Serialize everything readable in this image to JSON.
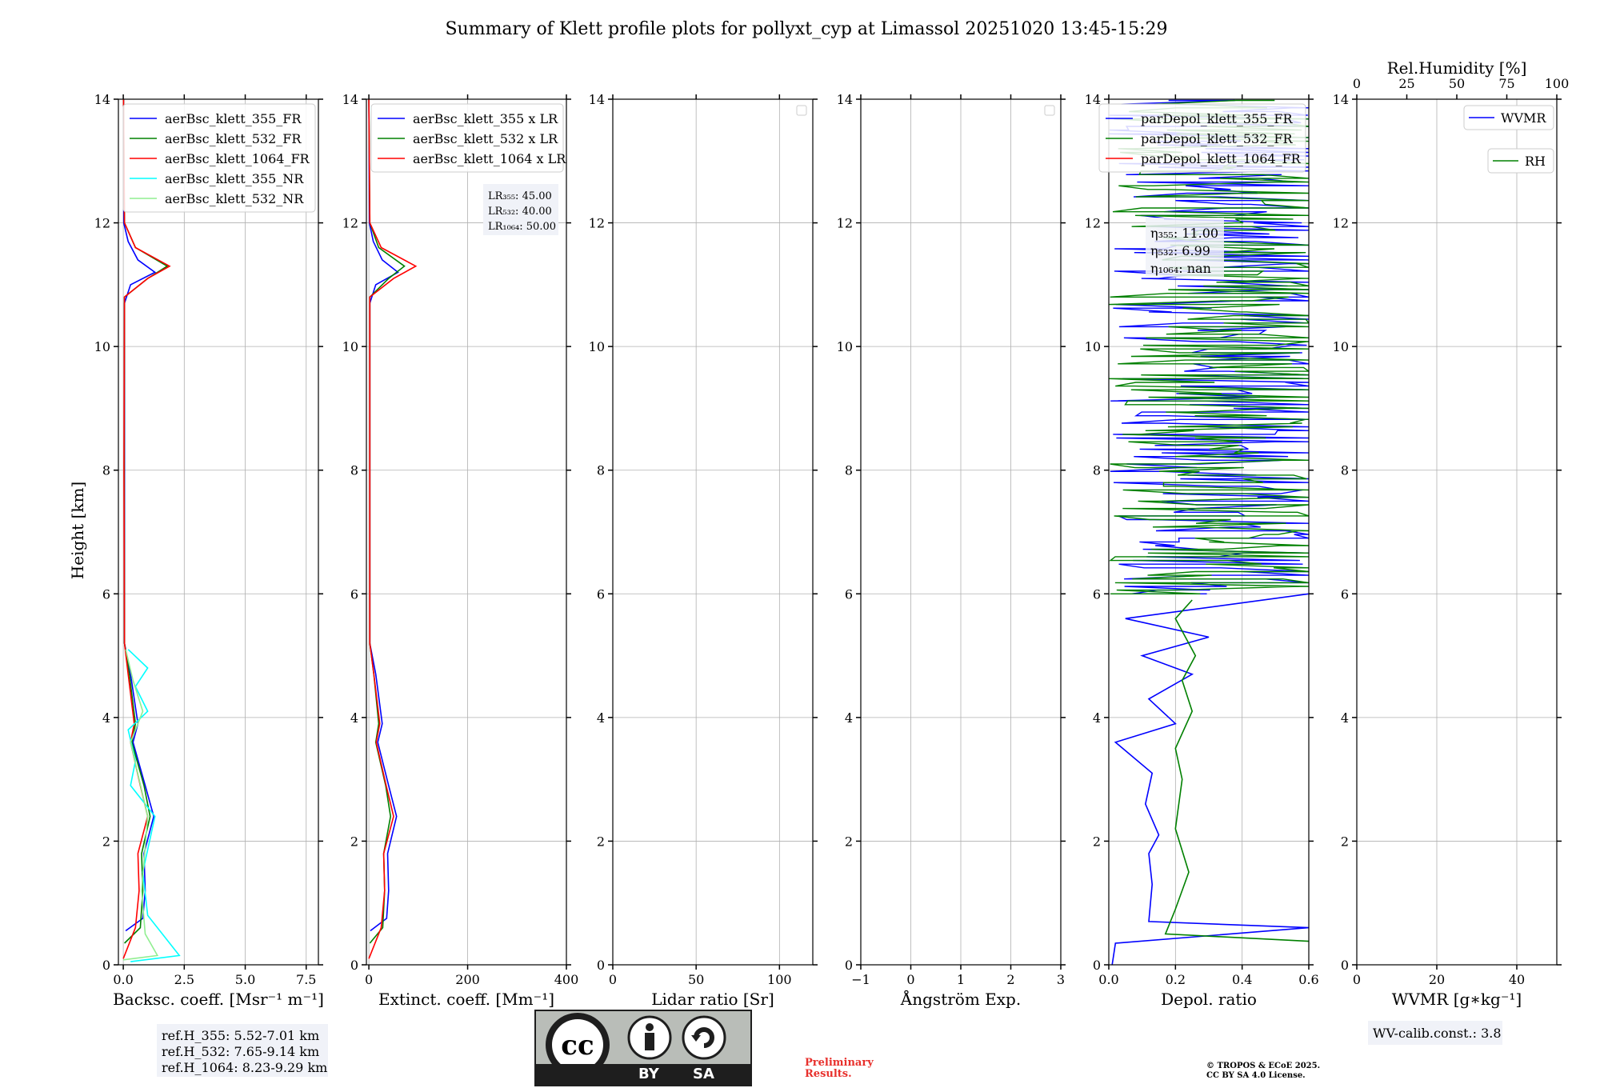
{
  "title": "Summary of Klett profile plots for pollyxt_cyp at Limassol 20251020 13:45-15:29",
  "y_axis_label": "Height [km]",
  "y_ticks": [
    "0",
    "2",
    "4",
    "6",
    "8",
    "10",
    "12",
    "14"
  ],
  "colors": {
    "blue": "#0000ff",
    "green": "#008000",
    "red": "#ff0000",
    "cyan": "#00ffff",
    "lightgreen": "#90ee90",
    "grid": "#b0b0b0"
  },
  "chart_data": [
    {
      "type": "line",
      "xlabel": "Backsc. coeff. [Msr⁻¹ m⁻¹]",
      "xlim": [
        -0.2,
        8.0
      ],
      "ylim": [
        0,
        14
      ],
      "x_ticks": [
        "0.0",
        "2.5",
        "5.0",
        "7.5"
      ],
      "legend": [
        "aerBsc_klett_355_FR",
        "aerBsc_klett_532_FR",
        "aerBsc_klett_1064_FR",
        "aerBsc_klett_355_NR",
        "aerBsc_klett_532_NR"
      ],
      "legend_placement": "top-right",
      "ref_heights": [
        "ref.H_355: 5.52-7.01 km",
        "ref.H_532: 7.65-9.14 km",
        "ref.H_1064: 8.23-9.29 km"
      ],
      "series": [
        {
          "name": "aerBsc_klett_355_FR",
          "color": "blue",
          "points": [
            [
              0.1,
              0.55
            ],
            [
              0.8,
              0.75
            ],
            [
              0.9,
              1.2
            ],
            [
              0.85,
              1.8
            ],
            [
              1.25,
              2.4
            ],
            [
              0.9,
              2.9
            ],
            [
              0.4,
              3.6
            ],
            [
              0.6,
              3.9
            ],
            [
              0.3,
              4.7
            ],
            [
              0.05,
              5.2
            ],
            [
              0.05,
              8.0
            ],
            [
              0.05,
              10.7
            ],
            [
              0.3,
              11.0
            ],
            [
              1.3,
              11.2
            ],
            [
              0.6,
              11.4
            ],
            [
              0.2,
              11.7
            ],
            [
              0.02,
              12.0
            ],
            [
              0.01,
              14.0
            ]
          ]
        },
        {
          "name": "aerBsc_klett_532_FR",
          "color": "green",
          "points": [
            [
              0.05,
              0.35
            ],
            [
              0.7,
              0.6
            ],
            [
              0.8,
              1.2
            ],
            [
              0.75,
              1.8
            ],
            [
              1.1,
              2.4
            ],
            [
              0.85,
              2.9
            ],
            [
              0.35,
              3.6
            ],
            [
              0.5,
              3.9
            ],
            [
              0.25,
              4.7
            ],
            [
              0.05,
              5.2
            ],
            [
              0.04,
              8.0
            ],
            [
              0.05,
              10.8
            ],
            [
              1.0,
              11.1
            ],
            [
              1.8,
              11.3
            ],
            [
              0.5,
              11.6
            ],
            [
              0.05,
              12.0
            ],
            [
              0.01,
              14.0
            ]
          ]
        },
        {
          "name": "aerBsc_klett_1064_FR",
          "color": "red",
          "points": [
            [
              0.0,
              0.1
            ],
            [
              0.5,
              0.6
            ],
            [
              0.65,
              1.2
            ],
            [
              0.6,
              1.8
            ],
            [
              1.0,
              2.4
            ],
            [
              0.7,
              2.9
            ],
            [
              0.3,
              3.6
            ],
            [
              0.45,
              3.9
            ],
            [
              0.2,
              4.7
            ],
            [
              0.05,
              5.2
            ],
            [
              0.03,
              8.0
            ],
            [
              0.05,
              10.8
            ],
            [
              1.0,
              11.1
            ],
            [
              1.9,
              11.3
            ],
            [
              0.5,
              11.6
            ],
            [
              0.05,
              12.0
            ],
            [
              0.01,
              14.0
            ]
          ]
        },
        {
          "name": "aerBsc_klett_355_NR",
          "color": "cyan",
          "points": [
            [
              0.3,
              0.05
            ],
            [
              2.3,
              0.15
            ],
            [
              1.0,
              0.8
            ],
            [
              0.8,
              1.5
            ],
            [
              1.3,
              2.4
            ],
            [
              0.3,
              2.9
            ],
            [
              0.5,
              3.3
            ],
            [
              0.2,
              3.8
            ],
            [
              1.0,
              4.1
            ],
            [
              0.5,
              4.5
            ],
            [
              1.0,
              4.8
            ],
            [
              0.2,
              5.1
            ]
          ]
        },
        {
          "name": "aerBsc_klett_532_NR",
          "color": "lightgreen",
          "points": [
            [
              0.0,
              0.08
            ],
            [
              1.4,
              0.15
            ],
            [
              0.9,
              0.5
            ],
            [
              0.75,
              1.2
            ],
            [
              1.0,
              2.4
            ],
            [
              0.3,
              3.6
            ],
            [
              0.8,
              4.1
            ],
            [
              0.4,
              4.6
            ],
            [
              0.1,
              5.1
            ]
          ]
        }
      ]
    },
    {
      "type": "line",
      "xlabel": "Extinct. coeff. [Mm⁻¹]",
      "xlim": [
        -5,
        400
      ],
      "ylim": [
        0,
        14
      ],
      "x_ticks": [
        "0",
        "200",
        "400"
      ],
      "legend": [
        "aerBsc_klett_355 x LR",
        "aerBsc_klett_532 x LR",
        "aerBsc_klett_1064 x LR"
      ],
      "legend_placement": "top-right",
      "lidar_ratios": [
        "LR₃₅₅: 45.00",
        "LR₅₃₂: 40.00",
        "LR₁₀₆₄: 50.00"
      ],
      "series": [
        {
          "name": "aerBsc_klett_355 x LR",
          "color": "blue",
          "points": [
            [
              3,
              0.55
            ],
            [
              36,
              0.75
            ],
            [
              40,
              1.2
            ],
            [
              38,
              1.8
            ],
            [
              56,
              2.4
            ],
            [
              40,
              2.9
            ],
            [
              18,
              3.6
            ],
            [
              27,
              3.9
            ],
            [
              14,
              4.7
            ],
            [
              2,
              5.2
            ],
            [
              2,
              8.0
            ],
            [
              2,
              10.7
            ],
            [
              14,
              11.0
            ],
            [
              59,
              11.2
            ],
            [
              27,
              11.4
            ],
            [
              9,
              11.7
            ],
            [
              1,
              12.0
            ],
            [
              0,
              14.0
            ]
          ]
        },
        {
          "name": "aerBsc_klett_532 x LR",
          "color": "green",
          "points": [
            [
              2,
              0.35
            ],
            [
              28,
              0.6
            ],
            [
              32,
              1.2
            ],
            [
              30,
              1.8
            ],
            [
              44,
              2.4
            ],
            [
              34,
              2.9
            ],
            [
              14,
              3.6
            ],
            [
              20,
              3.9
            ],
            [
              10,
              4.7
            ],
            [
              2,
              5.2
            ],
            [
              2,
              8.0
            ],
            [
              2,
              10.8
            ],
            [
              40,
              11.1
            ],
            [
              72,
              11.3
            ],
            [
              20,
              11.6
            ],
            [
              2,
              12.0
            ],
            [
              0,
              14.0
            ]
          ]
        },
        {
          "name": "aerBsc_klett_1064 x LR",
          "color": "red",
          "points": [
            [
              0,
              0.1
            ],
            [
              25,
              0.6
            ],
            [
              32,
              1.2
            ],
            [
              30,
              1.8
            ],
            [
              50,
              2.4
            ],
            [
              35,
              2.9
            ],
            [
              15,
              3.6
            ],
            [
              22,
              3.9
            ],
            [
              10,
              4.7
            ],
            [
              2,
              5.2
            ],
            [
              2,
              8.0
            ],
            [
              2,
              10.8
            ],
            [
              50,
              11.1
            ],
            [
              95,
              11.3
            ],
            [
              25,
              11.6
            ],
            [
              2,
              12.0
            ],
            [
              0,
              14.0
            ]
          ]
        }
      ]
    },
    {
      "type": "line",
      "xlabel": "Lidar ratio [Sr]",
      "xlim": [
        0,
        120
      ],
      "ylim": [
        0,
        14
      ],
      "x_ticks": [
        "0",
        "50",
        "100"
      ],
      "legend": [],
      "legend_placement": "top-right",
      "series": []
    },
    {
      "type": "line",
      "xlabel": "Ångström Exp.",
      "xlim": [
        -1,
        3
      ],
      "ylim": [
        0,
        14
      ],
      "x_ticks": [
        "−1",
        "0",
        "1",
        "2",
        "3"
      ],
      "legend": [],
      "legend_placement": "top-right",
      "series": []
    },
    {
      "type": "line",
      "xlabel": "Depol. ratio",
      "xlim": [
        0.0,
        0.6
      ],
      "ylim": [
        0,
        14
      ],
      "x_ticks": [
        "0.0",
        "0.2",
        "0.4",
        "0.6"
      ],
      "legend": [
        "parDepol_klett_355_FR",
        "parDepol_klett_532_FR",
        "parDepol_klett_1064_FR"
      ],
      "legend_placement": "top-right",
      "depol_ratios": [
        "η₃₅₅: 11.00",
        "η₅₃₂: 6.99",
        "η₁₀₆₄: nan"
      ],
      "series": [
        {
          "name": "parDepol_klett_355_FR",
          "color": "blue",
          "points": [
            [
              0.01,
              0.0
            ],
            [
              0.02,
              0.35
            ],
            [
              0.6,
              0.6
            ],
            [
              0.12,
              0.7
            ],
            [
              0.13,
              1.3
            ],
            [
              0.12,
              1.8
            ],
            [
              0.15,
              2.1
            ],
            [
              0.11,
              2.6
            ],
            [
              0.13,
              3.1
            ],
            [
              0.02,
              3.6
            ],
            [
              0.2,
              3.9
            ],
            [
              0.12,
              4.3
            ],
            [
              0.25,
              4.7
            ],
            [
              0.1,
              5.0
            ],
            [
              0.3,
              5.3
            ],
            [
              0.05,
              5.6
            ],
            [
              0.6,
              6.0
            ]
          ]
        },
        {
          "name": "parDepol_klett_532_FR",
          "color": "green",
          "points": [
            [
              0.6,
              0.38
            ],
            [
              0.17,
              0.5
            ],
            [
              0.2,
              0.9
            ],
            [
              0.24,
              1.5
            ],
            [
              0.2,
              2.2
            ],
            [
              0.22,
              3.0
            ],
            [
              0.2,
              3.5
            ],
            [
              0.25,
              4.1
            ],
            [
              0.22,
              4.6
            ],
            [
              0.26,
              5.0
            ],
            [
              0.2,
              5.6
            ],
            [
              0.25,
              5.9
            ]
          ]
        },
        {
          "name": "parDepol_klett_1064_FR",
          "color": "red",
          "points": []
        }
      ],
      "noisy_region": {
        "from_km": 6.0,
        "to_km": 14.0
      }
    },
    {
      "type": "line",
      "xlabel": "WVMR [g∗kg⁻¹]",
      "xlim": [
        0,
        50
      ],
      "ylim": [
        0,
        14
      ],
      "x_ticks": [
        "0",
        "20",
        "40"
      ],
      "top_xlabel": "Rel.Humidity [%]",
      "top_xlim": [
        0,
        100
      ],
      "top_x_ticks": [
        "0",
        "25",
        "50",
        "75",
        "100"
      ],
      "legend": [
        "WVMR",
        "RH"
      ],
      "legend_placement": "top-right",
      "wv_calib": "WV-calib.const.: 3.8",
      "series": []
    }
  ],
  "footer": {
    "cc_by": "BY",
    "cc_sa": "SA",
    "preliminary": "Preliminary\nResults.",
    "copyright": "© TROPOS & ECoE 2025.\nCC BY SA 4.0 License."
  }
}
